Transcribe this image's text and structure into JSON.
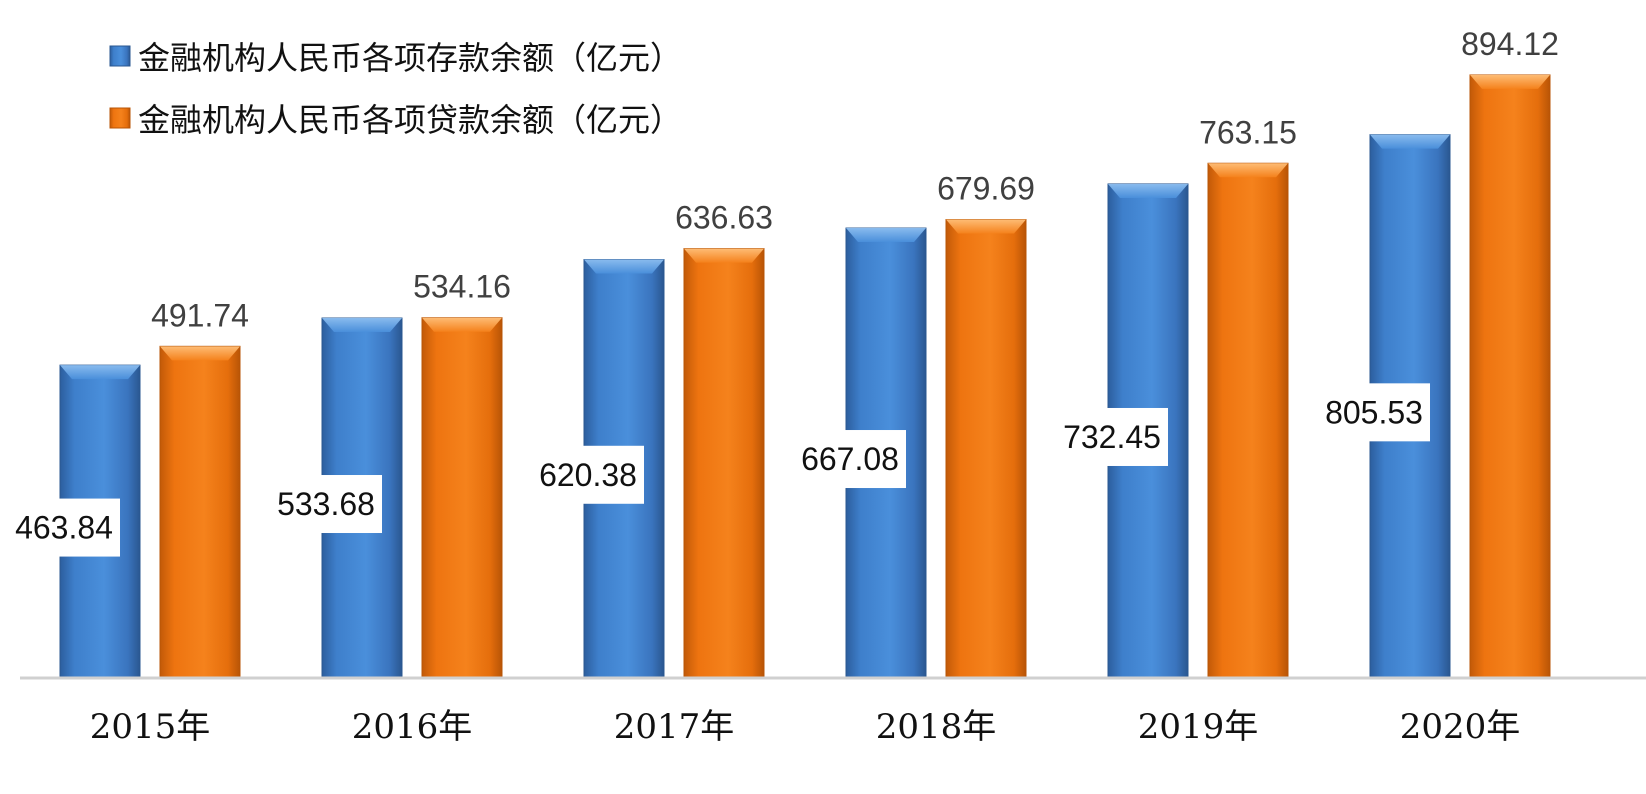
{
  "chart_data": {
    "type": "bar",
    "categories": [
      "2015年",
      "2016年",
      "2017年",
      "2018年",
      "2019年",
      "2020年"
    ],
    "series": [
      {
        "name": "金融机构人民币各项存款余额（亿元）",
        "values": [
          463.84,
          533.68,
          620.38,
          667.08,
          732.45,
          805.53
        ],
        "color": "#3C7DCB",
        "label_style": "boxed-inside"
      },
      {
        "name": "金融机构人民币各项贷款余额（亿元）",
        "values": [
          491.74,
          534.16,
          636.63,
          679.69,
          763.15,
          894.12
        ],
        "color": "#F07613",
        "label_style": "above"
      }
    ],
    "title": "",
    "xlabel": "",
    "ylabel": "",
    "ylim": [
      0,
      940
    ],
    "grid": false,
    "legend_position": "top-left"
  }
}
